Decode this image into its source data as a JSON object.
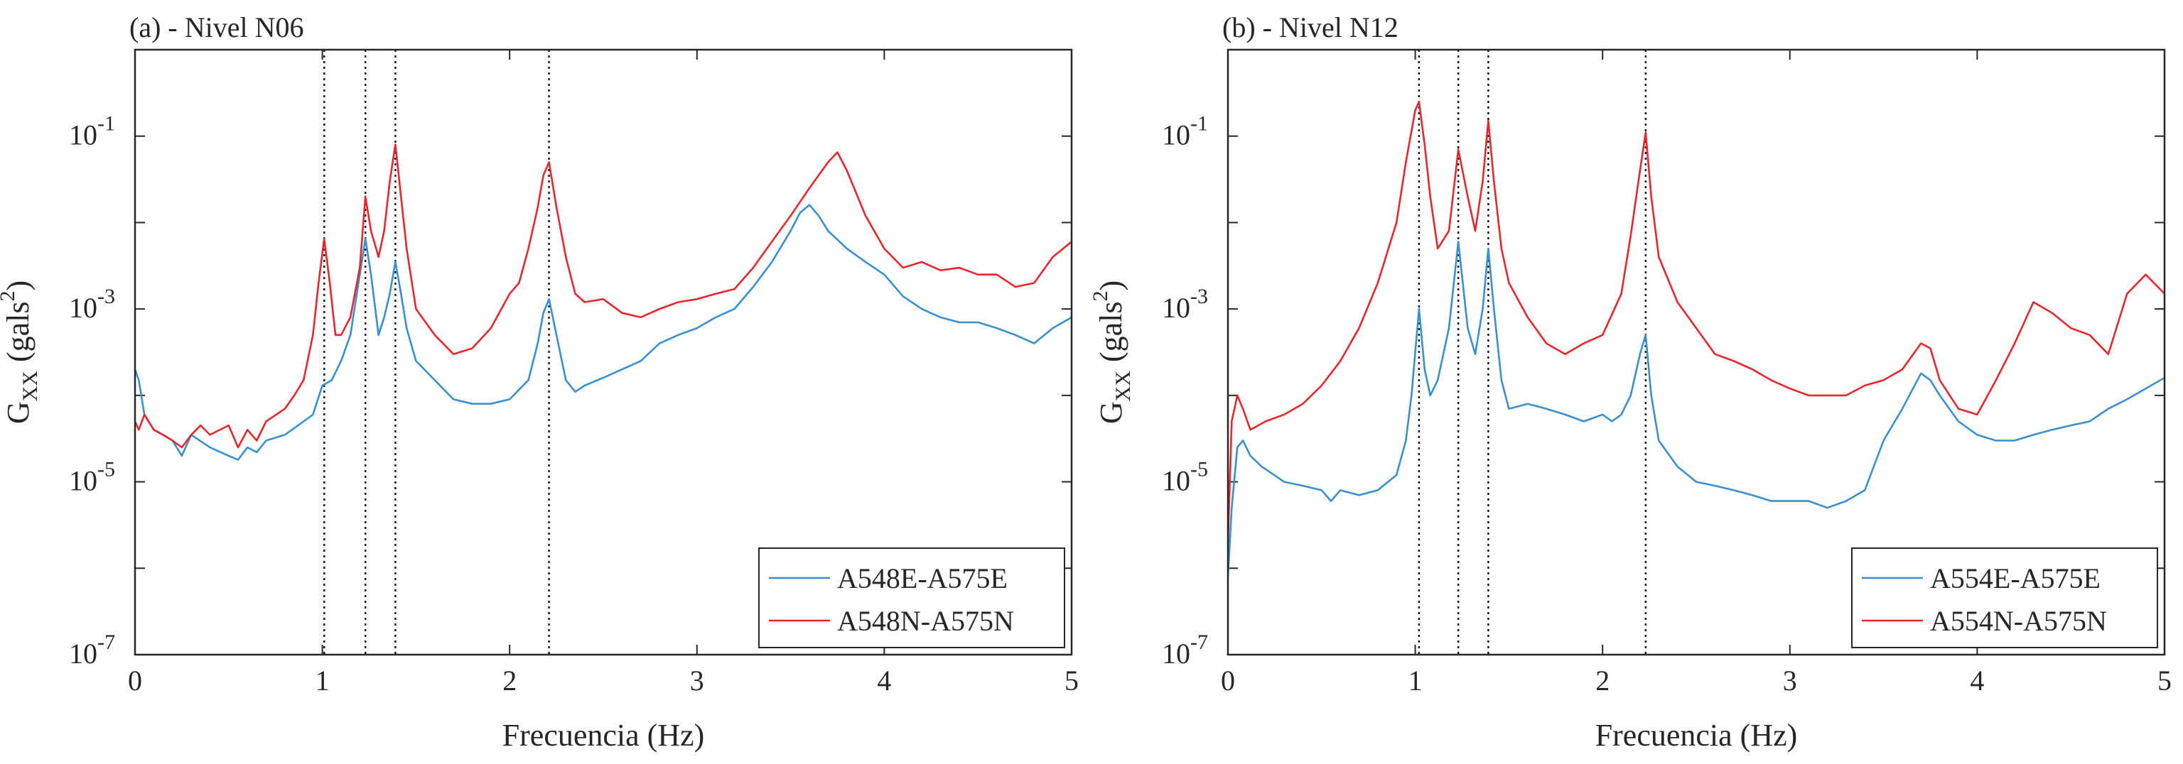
{
  "chart_data": [
    {
      "type": "line",
      "title": "(a) - Nivel N06",
      "xlabel": "Frecuencia (Hz)",
      "ylabel": "G_xx (gals^2)",
      "ylabel_parts": {
        "main": "G",
        "sub": "XX",
        "unit_open": "(gals",
        "sup": "2",
        "unit_close": ")"
      },
      "xlim": [
        0,
        5
      ],
      "ylim": [
        1e-07,
        1
      ],
      "yscale": "log",
      "xticks": [
        "0",
        "1",
        "2",
        "3",
        "4",
        "5"
      ],
      "yticks": [
        {
          "base": "10",
          "exp": "-7"
        },
        {
          "base": "10",
          "exp": "-5"
        },
        {
          "base": "10",
          "exp": "-3"
        },
        {
          "base": "10",
          "exp": "-1"
        }
      ],
      "ytick_values": [
        1e-07,
        1e-05,
        0.001,
        0.1
      ],
      "vlines": [
        1.01,
        1.23,
        1.39,
        2.21
      ],
      "legend_position": "bottom-right",
      "series": [
        {
          "name": "A548E-A575E",
          "color": "#3a8fce",
          "x": [
            0,
            0.02,
            0.05,
            0.1,
            0.15,
            0.2,
            0.25,
            0.3,
            0.4,
            0.5,
            0.55,
            0.6,
            0.65,
            0.7,
            0.8,
            0.9,
            0.95,
            1.0,
            1.05,
            1.1,
            1.15,
            1.2,
            1.23,
            1.26,
            1.3,
            1.33,
            1.36,
            1.39,
            1.42,
            1.45,
            1.5,
            1.6,
            1.7,
            1.8,
            1.9,
            2.0,
            2.1,
            2.15,
            2.18,
            2.21,
            2.25,
            2.3,
            2.35,
            2.4,
            2.5,
            2.6,
            2.7,
            2.8,
            2.9,
            3.0,
            3.1,
            3.2,
            3.3,
            3.4,
            3.5,
            3.55,
            3.6,
            3.65,
            3.7,
            3.8,
            3.9,
            4.0,
            4.1,
            4.2,
            4.3,
            4.4,
            4.5,
            4.6,
            4.7,
            4.8,
            4.9,
            5.0
          ],
          "values": [
            0.0002,
            0.00015,
            6e-05,
            4e-05,
            3.5e-05,
            3e-05,
            2e-05,
            3.5e-05,
            2.5e-05,
            2e-05,
            1.8e-05,
            2.5e-05,
            2.2e-05,
            3e-05,
            3.5e-05,
            5e-05,
            6e-05,
            0.00013,
            0.00015,
            0.00025,
            0.0005,
            0.0025,
            0.0065,
            0.0025,
            0.0005,
            0.0008,
            0.0015,
            0.0035,
            0.0015,
            0.0006,
            0.00025,
            0.00015,
            9e-05,
            8e-05,
            8e-05,
            9e-05,
            0.00015,
            0.0004,
            0.0009,
            0.0013,
            0.0005,
            0.00015,
            0.00011,
            0.00013,
            0.00016,
            0.0002,
            0.00025,
            0.0004,
            0.0005,
            0.0006,
            0.0008,
            0.001,
            0.0018,
            0.0035,
            0.008,
            0.013,
            0.016,
            0.012,
            0.008,
            0.005,
            0.0035,
            0.0025,
            0.0014,
            0.001,
            0.0008,
            0.0007,
            0.0007,
            0.0006,
            0.0005,
            0.0004,
            0.0006,
            0.0008
          ]
        },
        {
          "name": "A548N-A575N",
          "color": "#e8262d",
          "x": [
            0,
            0.02,
            0.05,
            0.1,
            0.15,
            0.2,
            0.25,
            0.3,
            0.35,
            0.4,
            0.5,
            0.55,
            0.6,
            0.65,
            0.7,
            0.8,
            0.85,
            0.9,
            0.95,
            0.98,
            1.01,
            1.04,
            1.07,
            1.1,
            1.15,
            1.2,
            1.23,
            1.26,
            1.3,
            1.33,
            1.36,
            1.39,
            1.42,
            1.45,
            1.5,
            1.6,
            1.7,
            1.8,
            1.9,
            2.0,
            2.05,
            2.1,
            2.15,
            2.18,
            2.21,
            2.25,
            2.3,
            2.35,
            2.4,
            2.5,
            2.6,
            2.7,
            2.8,
            2.9,
            3.0,
            3.1,
            3.2,
            3.3,
            3.4,
            3.5,
            3.6,
            3.7,
            3.75,
            3.8,
            3.9,
            4.0,
            4.1,
            4.2,
            4.3,
            4.4,
            4.5,
            4.6,
            4.7,
            4.8,
            4.9,
            5.0
          ],
          "values": [
            5e-05,
            4e-05,
            6e-05,
            4e-05,
            3.5e-05,
            3e-05,
            2.5e-05,
            3.5e-05,
            4.5e-05,
            3.5e-05,
            4.5e-05,
            2.5e-05,
            4e-05,
            3e-05,
            5e-05,
            7e-05,
            0.0001,
            0.00015,
            0.0005,
            0.002,
            0.0065,
            0.002,
            0.0005,
            0.0005,
            0.0008,
            0.003,
            0.02,
            0.008,
            0.004,
            0.008,
            0.03,
            0.08,
            0.02,
            0.005,
            0.001,
            0.0005,
            0.0003,
            0.00035,
            0.0006,
            0.0015,
            0.002,
            0.005,
            0.015,
            0.035,
            0.05,
            0.015,
            0.004,
            0.0015,
            0.0012,
            0.0013,
            0.0009,
            0.0008,
            0.001,
            0.0012,
            0.0013,
            0.0015,
            0.0017,
            0.003,
            0.006,
            0.012,
            0.025,
            0.05,
            0.065,
            0.04,
            0.012,
            0.005,
            0.003,
            0.0035,
            0.0028,
            0.003,
            0.0025,
            0.0025,
            0.0018,
            0.002,
            0.004,
            0.006
          ]
        }
      ]
    },
    {
      "type": "line",
      "title": "(b) - Nivel N12",
      "xlabel": "Frecuencia (Hz)",
      "ylabel": "G_xx (gals^2)",
      "ylabel_parts": {
        "main": "G",
        "sub": "XX",
        "unit_open": "(gals",
        "sup": "2",
        "unit_close": ")"
      },
      "xlim": [
        0,
        5
      ],
      "ylim": [
        1e-07,
        1
      ],
      "yscale": "log",
      "xticks": [
        "0",
        "1",
        "2",
        "3",
        "4",
        "5"
      ],
      "yticks": [
        {
          "base": "10",
          "exp": "-7"
        },
        {
          "base": "10",
          "exp": "-5"
        },
        {
          "base": "10",
          "exp": "-3"
        },
        {
          "base": "10",
          "exp": "-1"
        }
      ],
      "ytick_values": [
        1e-07,
        1e-05,
        0.001,
        0.1
      ],
      "vlines": [
        1.02,
        1.23,
        1.39,
        2.23
      ],
      "legend_position": "bottom-right",
      "series": [
        {
          "name": "A554E-A575E",
          "color": "#3a8fce",
          "x": [
            0,
            0.02,
            0.05,
            0.08,
            0.12,
            0.18,
            0.3,
            0.4,
            0.5,
            0.55,
            0.6,
            0.7,
            0.8,
            0.9,
            0.95,
            0.98,
            1.02,
            1.05,
            1.08,
            1.12,
            1.18,
            1.23,
            1.28,
            1.32,
            1.36,
            1.39,
            1.42,
            1.46,
            1.5,
            1.6,
            1.7,
            1.8,
            1.9,
            2.0,
            2.05,
            2.1,
            2.15,
            2.2,
            2.23,
            2.26,
            2.3,
            2.4,
            2.5,
            2.6,
            2.7,
            2.8,
            2.9,
            3.0,
            3.1,
            3.2,
            3.3,
            3.4,
            3.5,
            3.6,
            3.7,
            3.75,
            3.8,
            3.9,
            4.0,
            4.1,
            4.2,
            4.3,
            4.4,
            4.5,
            4.6,
            4.7,
            4.8,
            4.9,
            5.0
          ],
          "values": [
            8e-07,
            5e-06,
            2.5e-05,
            3e-05,
            2e-05,
            1.5e-05,
            1e-05,
            9e-06,
            8e-06,
            6e-06,
            8e-06,
            7e-06,
            8e-06,
            1.2e-05,
            3e-05,
            0.0001,
            0.001,
            0.0002,
            0.0001,
            0.00015,
            0.0006,
            0.006,
            0.0006,
            0.0003,
            0.001,
            0.005,
            0.001,
            0.00015,
            7e-05,
            8e-05,
            7e-05,
            6e-05,
            5e-05,
            6e-05,
            5e-05,
            6e-05,
            0.0001,
            0.0003,
            0.0005,
            0.0001,
            3e-05,
            1.5e-05,
            1e-05,
            9e-06,
            8e-06,
            7e-06,
            6e-06,
            6e-06,
            6e-06,
            5e-06,
            6e-06,
            8e-06,
            3e-05,
            7e-05,
            0.00018,
            0.00015,
            0.0001,
            5e-05,
            3.5e-05,
            3e-05,
            3e-05,
            3.5e-05,
            4e-05,
            4.5e-05,
            5e-05,
            7e-05,
            9e-05,
            0.00012,
            0.00016
          ]
        },
        {
          "name": "A554N-A575N",
          "color": "#e8262d",
          "x": [
            0,
            0.02,
            0.05,
            0.08,
            0.12,
            0.2,
            0.3,
            0.4,
            0.5,
            0.6,
            0.7,
            0.8,
            0.9,
            0.95,
            1.0,
            1.02,
            1.05,
            1.08,
            1.12,
            1.18,
            1.23,
            1.28,
            1.32,
            1.36,
            1.39,
            1.42,
            1.46,
            1.5,
            1.6,
            1.7,
            1.8,
            1.9,
            2.0,
            2.1,
            2.15,
            2.2,
            2.23,
            2.26,
            2.3,
            2.4,
            2.5,
            2.6,
            2.7,
            2.8,
            2.9,
            3.0,
            3.1,
            3.2,
            3.3,
            3.4,
            3.5,
            3.6,
            3.7,
            3.75,
            3.8,
            3.9,
            4.0,
            4.1,
            4.2,
            4.3,
            4.4,
            4.5,
            4.6,
            4.7,
            4.8,
            4.9,
            5.0
          ],
          "values": [
            2e-06,
            5e-05,
            0.0001,
            7e-05,
            4e-05,
            5e-05,
            6e-05,
            8e-05,
            0.00013,
            0.00025,
            0.0006,
            0.002,
            0.01,
            0.05,
            0.2,
            0.25,
            0.08,
            0.02,
            0.005,
            0.008,
            0.07,
            0.02,
            0.008,
            0.03,
            0.15,
            0.03,
            0.005,
            0.002,
            0.0008,
            0.0004,
            0.0003,
            0.0004,
            0.0005,
            0.0015,
            0.007,
            0.04,
            0.11,
            0.02,
            0.004,
            0.0012,
            0.0006,
            0.0003,
            0.00025,
            0.0002,
            0.00015,
            0.00012,
            0.0001,
            0.0001,
            0.0001,
            0.00013,
            0.00015,
            0.0002,
            0.0004,
            0.00035,
            0.00015,
            7e-05,
            6e-05,
            0.00015,
            0.0004,
            0.0012,
            0.0009,
            0.0006,
            0.0005,
            0.0003,
            0.0015,
            0.0025,
            0.0015
          ]
        }
      ]
    }
  ]
}
